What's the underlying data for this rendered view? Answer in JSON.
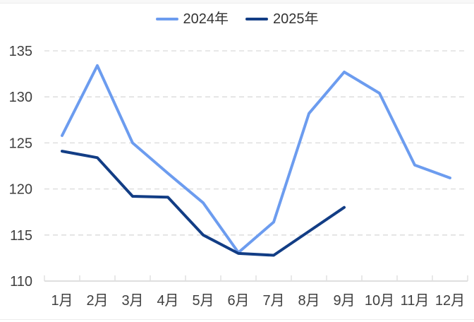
{
  "page": {
    "background": "#ffffff",
    "top_strip_color": "#f8f8f8",
    "edge_line_color": "#ececec"
  },
  "legend": {
    "position": "top-center",
    "items": [
      {
        "label": "2024年",
        "color": "#6C9CEF"
      },
      {
        "label": "2025年",
        "color": "#123D85"
      }
    ]
  },
  "chart_data": {
    "type": "line",
    "title": "",
    "xlabel": "",
    "ylabel": "",
    "categories": [
      "1月",
      "2月",
      "3月",
      "4月",
      "5月",
      "6月",
      "7月",
      "8月",
      "9月",
      "10月",
      "11月",
      "12月"
    ],
    "series": [
      {
        "name": "2024年",
        "color": "#6C9CEF",
        "values": [
          125.8,
          133.4,
          125.0,
          121.7,
          118.5,
          113.1,
          116.4,
          128.2,
          132.7,
          130.4,
          122.6,
          121.2
        ]
      },
      {
        "name": "2025年",
        "color": "#123D85",
        "values": [
          124.1,
          123.4,
          119.2,
          119.1,
          115.0,
          113.0,
          112.8,
          115.4,
          118.0,
          null,
          null,
          null
        ]
      }
    ],
    "ylim": [
      110,
      135
    ],
    "yticks": [
      110,
      115,
      120,
      125,
      130,
      135
    ],
    "grid": "horizontal-dashed",
    "legend_position": "top-center"
  },
  "style": {
    "gridline_color": "#D9D9D9",
    "axis_color": "#DFDFDF",
    "axis_label_color": "#3F3F3F",
    "line_width": 4
  }
}
